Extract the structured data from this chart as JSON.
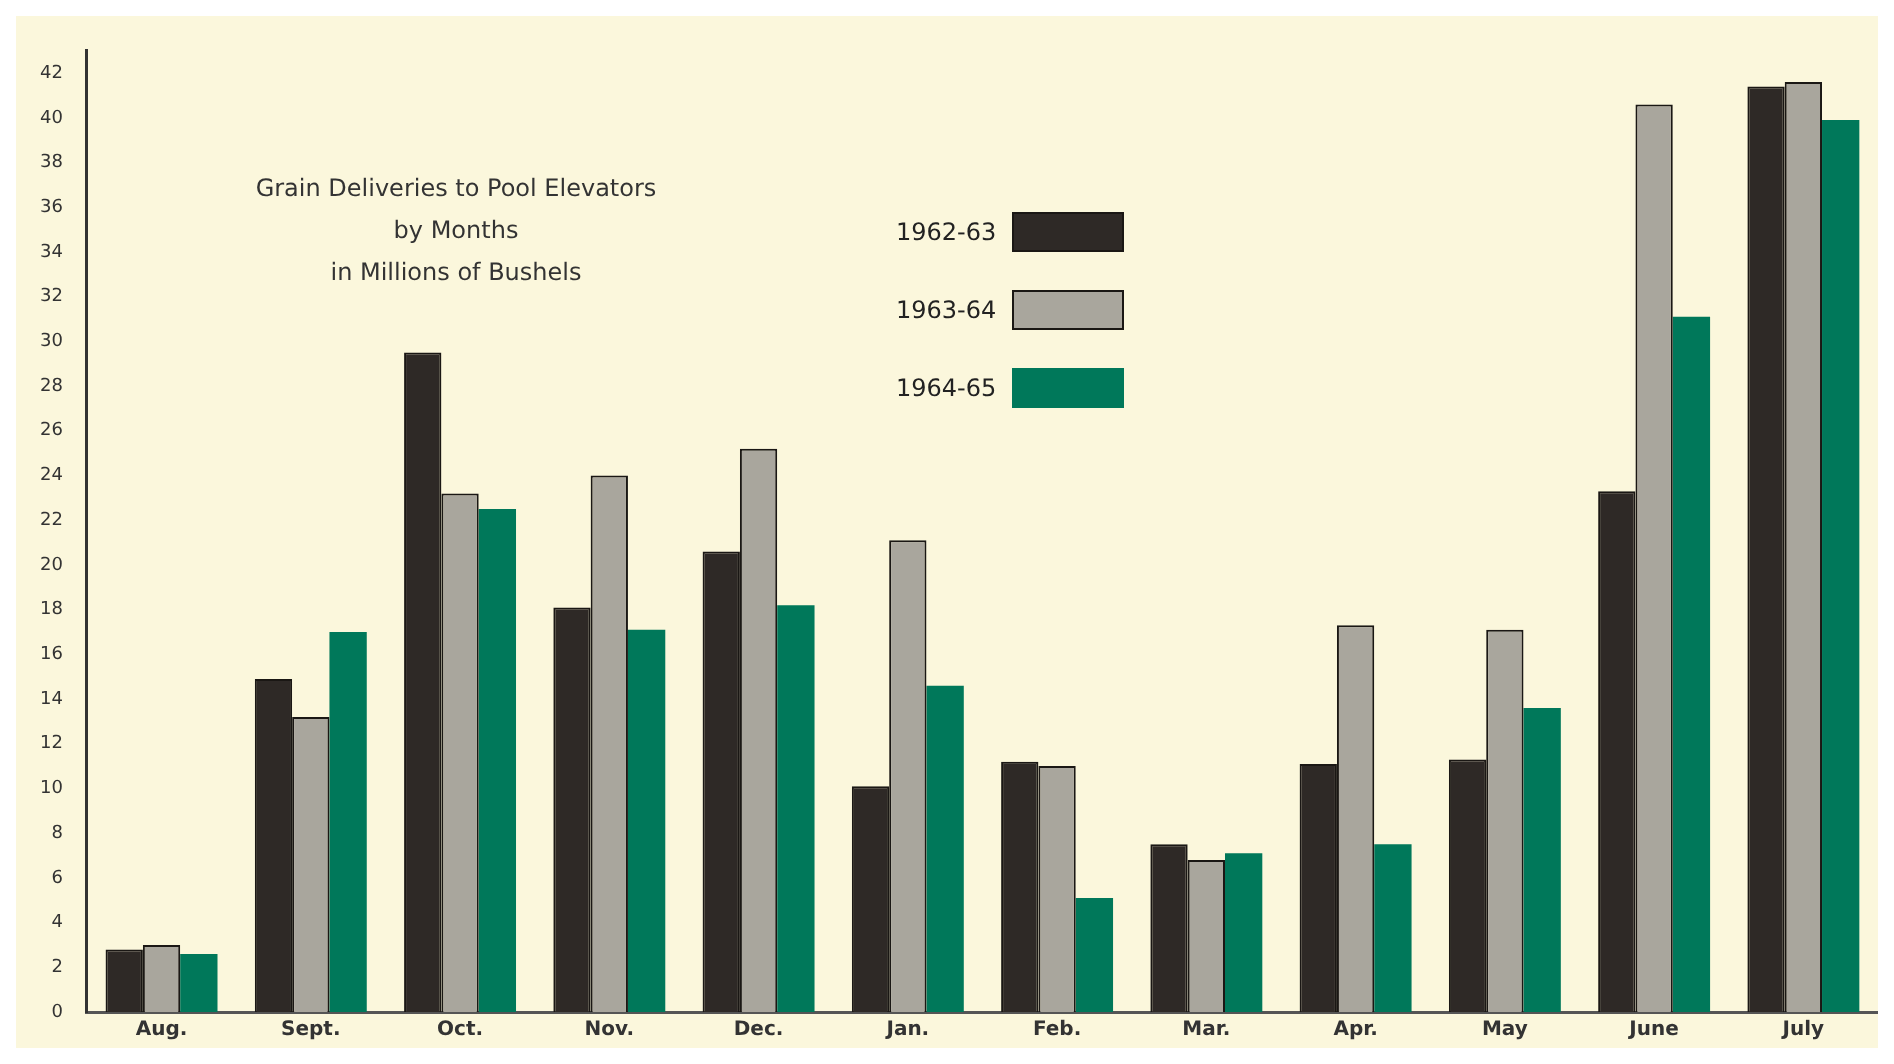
{
  "chart_data": {
    "type": "bar",
    "title": "Grain Deliveries to Pool Elevators",
    "subtitle": "by Months",
    "annotations": [
      "in Millions of Bushels"
    ],
    "categories": [
      "Aug.",
      "Sept.",
      "Oct.",
      "Nov.",
      "Dec.",
      "Jan.",
      "Feb.",
      "Mar.",
      "Apr.",
      "May",
      "June",
      "July"
    ],
    "series": [
      {
        "name": "1962-63",
        "color": "#2e2926",
        "values": [
          2.8,
          14.9,
          29.5,
          18.1,
          20.6,
          10.1,
          11.2,
          7.5,
          11.1,
          11.3,
          23.3,
          41.4
        ]
      },
      {
        "name": "1963-64",
        "color": "#a9a69d",
        "values": [
          3.0,
          13.2,
          23.2,
          24.0,
          25.2,
          21.1,
          11.0,
          6.8,
          17.3,
          17.1,
          40.6,
          41.6
        ]
      },
      {
        "name": "1964-65",
        "color": "#00785a",
        "values": [
          2.6,
          17.0,
          22.5,
          17.1,
          18.2,
          14.6,
          5.1,
          7.1,
          7.5,
          13.6,
          31.1,
          39.9
        ]
      }
    ],
    "ylim": [
      0,
      43
    ],
    "yticks": [
      0,
      2,
      4,
      6,
      8,
      10,
      12,
      14,
      16,
      18,
      20,
      22,
      24,
      26,
      28,
      30,
      32,
      34,
      36,
      38,
      40,
      42
    ],
    "grid": false,
    "legend": "top"
  }
}
